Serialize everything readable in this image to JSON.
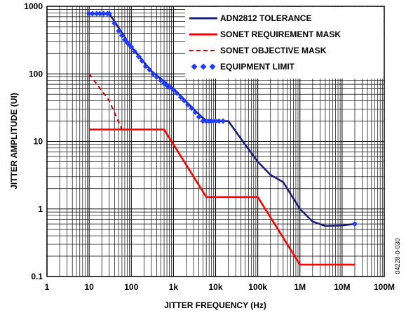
{
  "chart_data": {
    "type": "line",
    "title": "",
    "xlabel": "JITTER FREQUENCY (Hz)",
    "ylabel": "JITTER AMPLITUDE (UI)",
    "x_scale": "log",
    "y_scale": "log",
    "xlim": [
      1,
      100000000
    ],
    "ylim": [
      0.1,
      1000
    ],
    "grid": true,
    "legend_position": "top-right",
    "x_ticks": [
      {
        "value": 1,
        "label": "1"
      },
      {
        "value": 10,
        "label": "10"
      },
      {
        "value": 100,
        "label": "100"
      },
      {
        "value": 1000,
        "label": "1k"
      },
      {
        "value": 10000,
        "label": "10k"
      },
      {
        "value": 100000,
        "label": "100k"
      },
      {
        "value": 1000000,
        "label": "1M"
      },
      {
        "value": 10000000,
        "label": "10M"
      },
      {
        "value": 100000000,
        "label": "100M"
      }
    ],
    "y_ticks": [
      {
        "value": 0.1,
        "label": "0.1"
      },
      {
        "value": 1,
        "label": "1"
      },
      {
        "value": 10,
        "label": "10"
      },
      {
        "value": 100,
        "label": "100"
      },
      {
        "value": 1000,
        "label": "1000"
      }
    ],
    "series": [
      {
        "name": "ADN2812 TOLERANCE",
        "color": "#1a1f7a",
        "style": "solid",
        "points": [
          [
            10,
            780
          ],
          [
            30,
            780
          ],
          [
            100,
            250
          ],
          [
            300,
            110
          ],
          [
            1000,
            60
          ],
          [
            3000,
            30
          ],
          [
            6000,
            20
          ],
          [
            20000,
            20
          ],
          [
            50000,
            9
          ],
          [
            100000,
            5
          ],
          [
            200000,
            3.2
          ],
          [
            400000,
            2.5
          ],
          [
            1000000,
            1.0
          ],
          [
            2000000,
            0.65
          ],
          [
            4000000,
            0.56
          ],
          [
            10000000,
            0.57
          ],
          [
            20000000,
            0.6
          ]
        ]
      },
      {
        "name": "SONET REQUIREMENT MASK",
        "color": "#ff0000",
        "style": "solid",
        "points": [
          [
            10,
            15
          ],
          [
            600,
            15
          ],
          [
            6000,
            1.5
          ],
          [
            100000,
            1.5
          ],
          [
            1000000,
            0.15
          ],
          [
            20000000,
            0.15
          ]
        ]
      },
      {
        "name": "SONET OBJECTIVE MASK",
        "color": "#cc0000",
        "style": "dashed",
        "points": [
          [
            10,
            100
          ],
          [
            30,
            40
          ],
          [
            60,
            15
          ]
        ]
      },
      {
        "name": "EQUIPMENT LIMIT",
        "color": "#1f3cff",
        "style": "markers",
        "points": [
          [
            10,
            780
          ],
          [
            12,
            780
          ],
          [
            15,
            780
          ],
          [
            18,
            780
          ],
          [
            22,
            780
          ],
          [
            27,
            780
          ],
          [
            30,
            780
          ],
          [
            40,
            560
          ],
          [
            50,
            430
          ],
          [
            60,
            370
          ],
          [
            70,
            320
          ],
          [
            80,
            290
          ],
          [
            90,
            270
          ],
          [
            100,
            250
          ],
          [
            120,
            215
          ],
          [
            150,
            180
          ],
          [
            180,
            155
          ],
          [
            220,
            130
          ],
          [
            270,
            115
          ],
          [
            330,
            100
          ],
          [
            400,
            90
          ],
          [
            500,
            80
          ],
          [
            600,
            72
          ],
          [
            700,
            67
          ],
          [
            800,
            63
          ],
          [
            1000,
            58
          ],
          [
            1200,
            52
          ],
          [
            1500,
            45
          ],
          [
            1800,
            40
          ],
          [
            2200,
            35
          ],
          [
            2700,
            31
          ],
          [
            3300,
            27
          ],
          [
            4000,
            23
          ],
          [
            5000,
            20
          ],
          [
            6000,
            20
          ],
          [
            7000,
            20
          ],
          [
            8000,
            20
          ],
          [
            10000,
            20
          ],
          [
            12000,
            20
          ],
          [
            15000,
            20
          ],
          [
            20000000,
            0.6
          ]
        ]
      }
    ]
  },
  "figure_id": "04228-0-030"
}
